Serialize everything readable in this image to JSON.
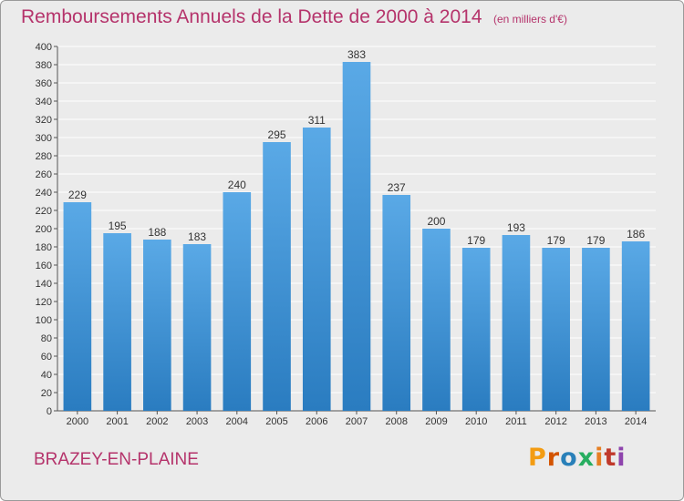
{
  "page": {
    "commune": "BRAZEY-EN-PLAINE",
    "brand": "Proxiti",
    "brand_colors": [
      "#f39c12",
      "#d35400",
      "#2980b9",
      "#27ae60",
      "#e67e22",
      "#c0392b",
      "#8e44ad"
    ]
  },
  "chart_data": {
    "type": "bar",
    "title": "Remboursements Annuels de la Dette de 2000 à 2014",
    "subtitle": "(en milliers d'€)",
    "xlabel": "",
    "ylabel": "",
    "categories": [
      "2000",
      "2001",
      "2002",
      "2003",
      "2004",
      "2005",
      "2006",
      "2007",
      "2008",
      "2009",
      "2010",
      "2011",
      "2012",
      "2013",
      "2014"
    ],
    "values": [
      229,
      195,
      188,
      183,
      240,
      295,
      311,
      383,
      237,
      200,
      179,
      193,
      179,
      179,
      186
    ],
    "ylim": [
      0,
      400
    ],
    "ytick_step": 20,
    "grid": true,
    "bar_color_top": "#5aa9e6",
    "bar_color_bottom": "#2a7cc0",
    "text_color": "#b5336b"
  }
}
